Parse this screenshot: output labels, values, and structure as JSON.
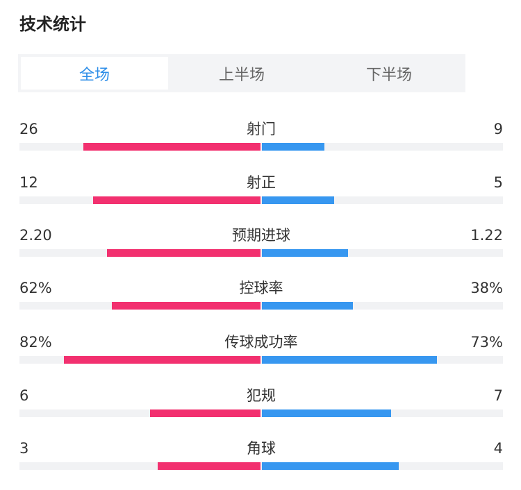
{
  "title": "技术统计",
  "tabs": [
    {
      "label": "全场",
      "active": true
    },
    {
      "label": "上半场",
      "active": false
    },
    {
      "label": "下半场",
      "active": false
    }
  ],
  "colors": {
    "home": "#f2306f",
    "away": "#3797f0",
    "tab_active": "#2e8ee8"
  },
  "stats": [
    {
      "label": "射门",
      "home": "26",
      "away": "9",
      "home_level": 0.74,
      "away_level": 0.26
    },
    {
      "label": "射正",
      "home": "12",
      "away": "5",
      "home_level": 0.7,
      "away_level": 0.3
    },
    {
      "label": "预期进球",
      "home": "2.20",
      "away": "1.22",
      "home_level": 0.64,
      "away_level": 0.36
    },
    {
      "label": "控球率",
      "home": "62%",
      "away": "38%",
      "home_level": 0.62,
      "away_level": 0.38
    },
    {
      "label": "传球成功率",
      "home": "82%",
      "away": "73%",
      "home_level": 0.82,
      "away_level": 0.73
    },
    {
      "label": "犯规",
      "home": "6",
      "away": "7",
      "home_level": 0.46,
      "away_level": 0.54
    },
    {
      "label": "角球",
      "home": "3",
      "away": "4",
      "home_level": 0.43,
      "away_level": 0.57
    }
  ]
}
